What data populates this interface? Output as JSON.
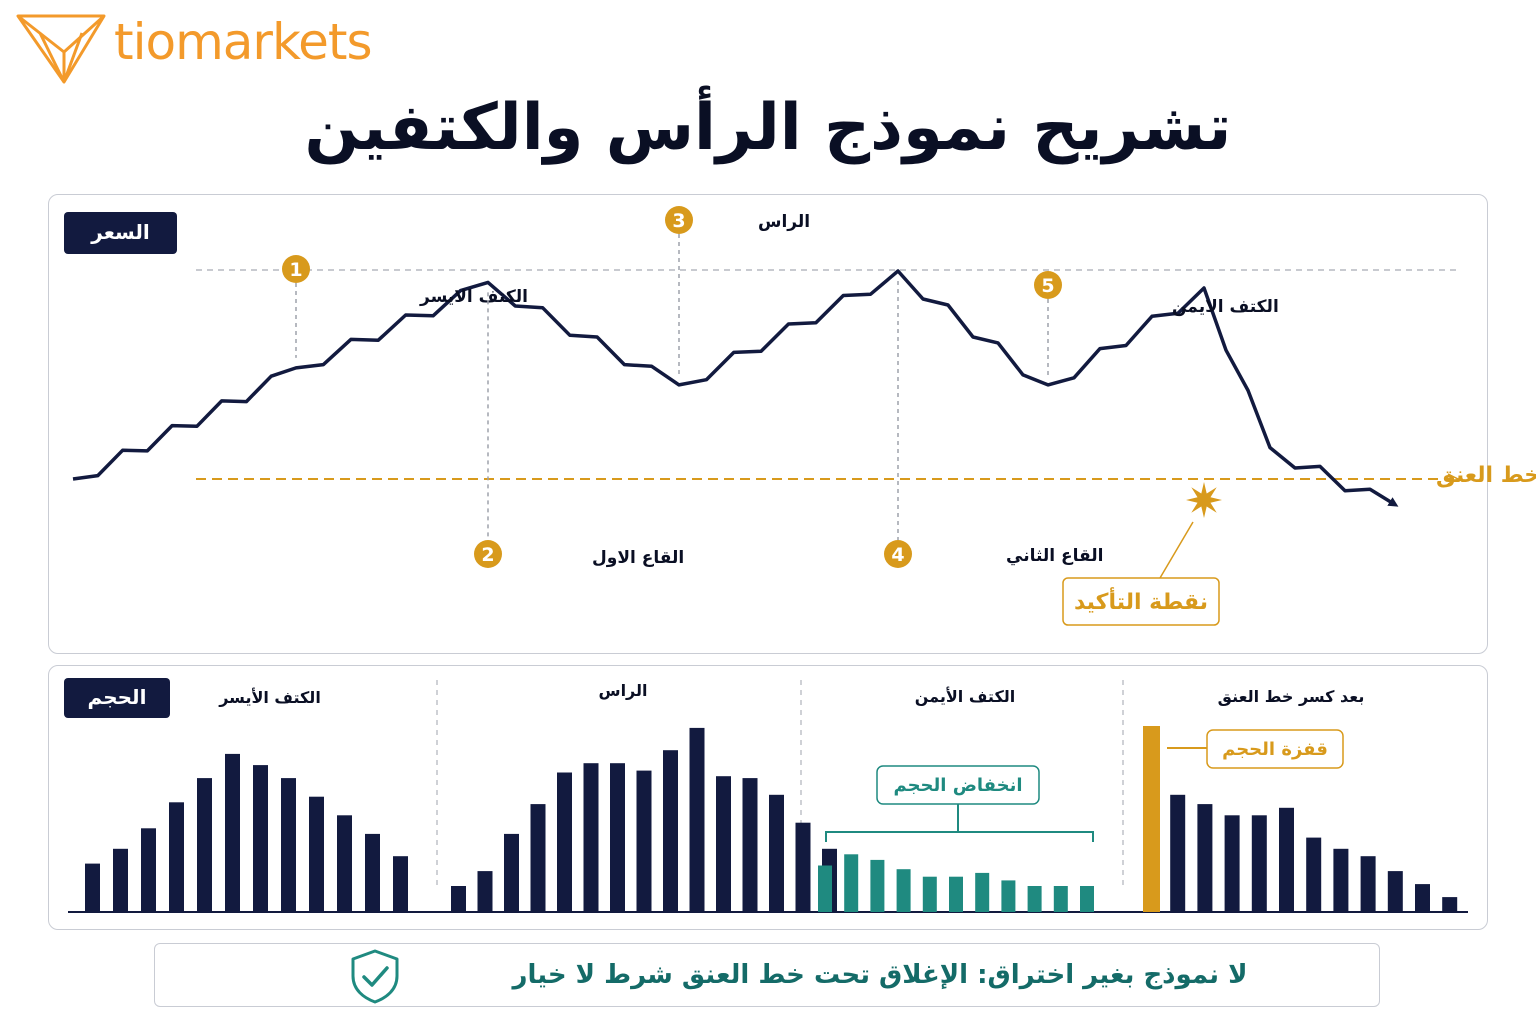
{
  "brand": {
    "name": "tiomarkets",
    "color": "#f39a2b"
  },
  "title": "تشريح نموذج الرأس والكتفين",
  "colors": {
    "navy": "#121a3f",
    "gold": "#d89a1c",
    "teal": "#1f8a80",
    "border": "#c9ccd4"
  },
  "chart_data": [
    {
      "type": "line",
      "panel_label": "السعر",
      "series": [
        {
          "values": [
            0.0,
            0.39,
            0.69,
            0.33,
            0.73,
            0.33,
            0.67,
            0.11,
            -0.09
          ]
        }
      ],
      "points": [
        {
          "number": "1",
          "label": "الكتف الايسر"
        },
        {
          "number": "2",
          "label": "القاع الاول"
        },
        {
          "number": "3",
          "label": "الراس"
        },
        {
          "number": "4",
          "label": "القاع الثاني"
        },
        {
          "number": "5",
          "label": "الكتف الايمن"
        }
      ],
      "neckline_label": "خط العنق",
      "confirmation_label": "نقطة التأكيد"
    },
    {
      "type": "bar",
      "panel_label": "الحجم",
      "groups": [
        {
          "label": "الكتف الأيسر",
          "values": [
            26,
            34,
            45,
            59,
            72,
            85,
            79,
            72,
            62,
            52,
            42,
            30
          ],
          "color": "#121a3f"
        },
        {
          "label": "الراس",
          "values": [
            14,
            22,
            42,
            58,
            75,
            80,
            80,
            76,
            87,
            99,
            73,
            72,
            63,
            48,
            34
          ],
          "color": "#121a3f"
        },
        {
          "label": "الكتف الأيمن",
          "values": [
            25,
            31,
            28,
            23,
            19,
            19,
            21,
            17,
            14,
            14,
            14
          ],
          "color": "#1f8a80"
        },
        {
          "label": "بعد كسر خط العنق",
          "values": [
            100,
            63,
            58,
            52,
            52,
            56,
            40,
            34,
            30,
            22,
            15,
            8
          ],
          "color": "#121a3f"
        }
      ],
      "annotations": {
        "drop": "انخفاض الحجم",
        "spike": "قفزة الحجم"
      }
    }
  ],
  "footer": {
    "text": "لا نموذج بغير اختراق: الإغلاق تحت خط العنق شرط لا خيار",
    "icon": "shield-check-icon"
  }
}
